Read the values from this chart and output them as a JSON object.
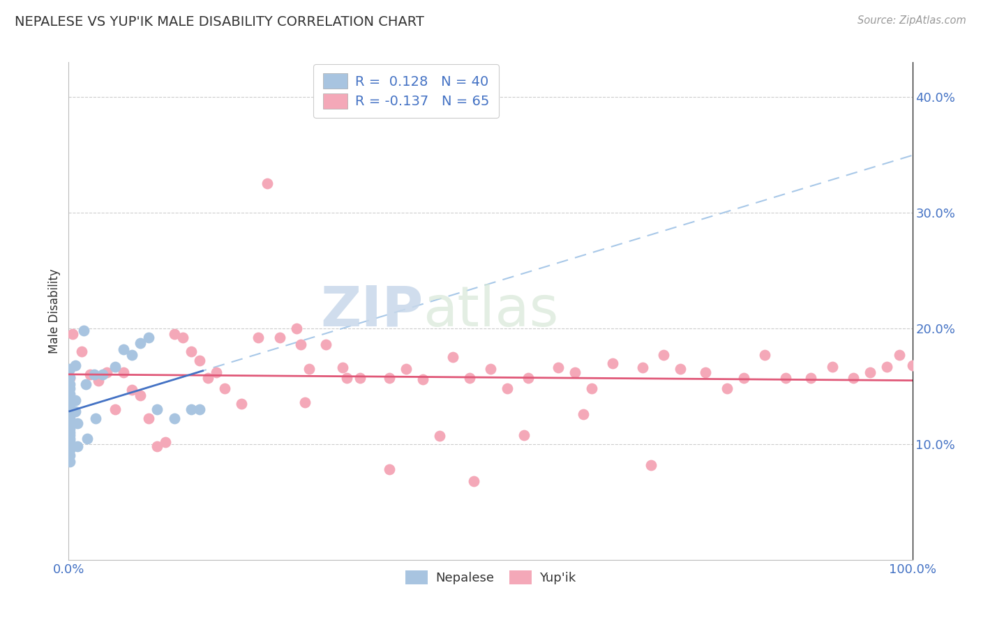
{
  "title": "NEPALESE VS YUP'IK MALE DISABILITY CORRELATION CHART",
  "source_text": "Source: ZipAtlas.com",
  "ylabel": "Male Disability",
  "nepalese_R": 0.128,
  "nepalese_N": 40,
  "yupik_R": -0.137,
  "yupik_N": 65,
  "nepalese_color": "#a8c4e0",
  "yupik_color": "#f4a8b8",
  "nepalese_line_color": "#4472c4",
  "yupik_line_color": "#e05878",
  "dashed_line_color": "#a8c8e8",
  "ytick_values": [
    0.1,
    0.2,
    0.3,
    0.4
  ],
  "ytick_labels": [
    "10.0%",
    "20.0%",
    "30.0%",
    "40.0%"
  ],
  "xlim": [
    0.0,
    1.0
  ],
  "ylim": [
    0.0,
    0.43
  ],
  "watermark_zip": "ZIP",
  "watermark_atlas": "atlas",
  "nepalese_x": [
    0.001,
    0.001,
    0.001,
    0.001,
    0.001,
    0.001,
    0.001,
    0.001,
    0.001,
    0.001,
    0.001,
    0.001,
    0.001,
    0.001,
    0.001,
    0.001,
    0.001,
    0.001,
    0.001,
    0.001,
    0.008,
    0.008,
    0.008,
    0.01,
    0.01,
    0.018,
    0.02,
    0.022,
    0.03,
    0.032,
    0.04,
    0.055,
    0.065,
    0.075,
    0.085,
    0.095,
    0.105,
    0.125,
    0.145,
    0.155
  ],
  "nepalese_y": [
    0.165,
    0.158,
    0.152,
    0.148,
    0.143,
    0.138,
    0.132,
    0.128,
    0.123,
    0.118,
    0.113,
    0.108,
    0.103,
    0.098,
    0.11,
    0.105,
    0.1,
    0.095,
    0.09,
    0.085,
    0.168,
    0.138,
    0.128,
    0.118,
    0.098,
    0.198,
    0.152,
    0.105,
    0.16,
    0.122,
    0.16,
    0.167,
    0.182,
    0.177,
    0.187,
    0.192,
    0.13,
    0.122,
    0.13,
    0.13
  ],
  "yupik_x": [
    0.001,
    0.005,
    0.015,
    0.025,
    0.035,
    0.045,
    0.055,
    0.065,
    0.075,
    0.085,
    0.095,
    0.105,
    0.115,
    0.125,
    0.135,
    0.145,
    0.155,
    0.165,
    0.175,
    0.185,
    0.205,
    0.225,
    0.235,
    0.25,
    0.27,
    0.275,
    0.285,
    0.305,
    0.325,
    0.345,
    0.38,
    0.4,
    0.42,
    0.455,
    0.475,
    0.5,
    0.52,
    0.545,
    0.58,
    0.6,
    0.62,
    0.645,
    0.68,
    0.705,
    0.725,
    0.755,
    0.78,
    0.8,
    0.825,
    0.85,
    0.88,
    0.905,
    0.93,
    0.95,
    0.97,
    0.985,
    1.0,
    0.28,
    0.33,
    0.38,
    0.44,
    0.48,
    0.54,
    0.61,
    0.69
  ],
  "yupik_y": [
    0.157,
    0.195,
    0.18,
    0.16,
    0.155,
    0.162,
    0.13,
    0.162,
    0.147,
    0.142,
    0.122,
    0.098,
    0.102,
    0.195,
    0.192,
    0.18,
    0.172,
    0.157,
    0.162,
    0.148,
    0.135,
    0.192,
    0.325,
    0.192,
    0.2,
    0.186,
    0.165,
    0.186,
    0.166,
    0.157,
    0.157,
    0.165,
    0.156,
    0.175,
    0.157,
    0.165,
    0.148,
    0.157,
    0.166,
    0.162,
    0.148,
    0.17,
    0.166,
    0.177,
    0.165,
    0.162,
    0.148,
    0.157,
    0.177,
    0.157,
    0.157,
    0.167,
    0.157,
    0.162,
    0.167,
    0.177,
    0.168,
    0.136,
    0.157,
    0.078,
    0.107,
    0.068,
    0.108,
    0.126,
    0.082
  ]
}
